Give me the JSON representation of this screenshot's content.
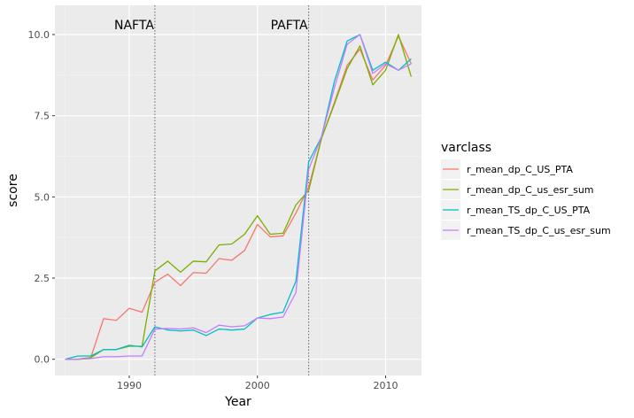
{
  "chart_data": {
    "type": "line",
    "xlabel": "Year",
    "ylabel": "score",
    "xlim": [
      1984.2,
      2012.8
    ],
    "ylim": [
      -0.5,
      10.9
    ],
    "x_ticks": [
      1990,
      2000,
      2010
    ],
    "y_ticks": [
      0.0,
      2.5,
      5.0,
      7.5,
      10.0
    ],
    "x_tick_labels": [
      "1990",
      "2000",
      "2010"
    ],
    "y_tick_labels": [
      "0.0",
      "2.5",
      "5.0",
      "7.5",
      "10.0"
    ],
    "grid": true,
    "legend": {
      "title": "varclass",
      "position": "right"
    },
    "annotations": [
      {
        "label": "NAFTA",
        "x": 1992
      },
      {
        "label": "PAFTA",
        "x": 2004
      }
    ],
    "x": [
      1985,
      1986,
      1987,
      1988,
      1989,
      1990,
      1991,
      1992,
      1993,
      1994,
      1995,
      1996,
      1997,
      1998,
      1999,
      2000,
      2001,
      2002,
      2003,
      2004,
      2005,
      2006,
      2007,
      2008,
      2009,
      2010,
      2011,
      2012
    ],
    "series": [
      {
        "name": "r_mean_dp_C_US_PTA",
        "color": "#F8766D",
        "values": [
          0.0,
          0.0,
          0.05,
          1.25,
          1.2,
          1.57,
          1.45,
          2.37,
          2.62,
          2.27,
          2.67,
          2.65,
          3.1,
          3.05,
          3.35,
          4.15,
          3.77,
          3.8,
          4.5,
          5.3,
          6.8,
          7.9,
          9.05,
          9.55,
          8.6,
          9.05,
          9.95,
          9.1
        ]
      },
      {
        "name": "r_mean_dp_C_us_esr_sum",
        "color": "#7CAE00",
        "values": [
          0.0,
          0.0,
          0.05,
          0.3,
          0.3,
          0.4,
          0.4,
          2.72,
          3.02,
          2.68,
          3.02,
          3.0,
          3.52,
          3.55,
          3.85,
          4.42,
          3.85,
          3.88,
          4.75,
          5.2,
          6.8,
          7.85,
          8.95,
          9.65,
          8.45,
          8.9,
          10.0,
          8.7
        ]
      },
      {
        "name": "r_mean_TS_dp_C_US_PTA",
        "color": "#00BFC4",
        "values": [
          0.0,
          0.1,
          0.1,
          0.3,
          0.3,
          0.43,
          0.38,
          1.0,
          0.9,
          0.87,
          0.9,
          0.73,
          0.93,
          0.9,
          0.93,
          1.27,
          1.38,
          1.45,
          2.4,
          6.08,
          6.85,
          8.55,
          9.8,
          10.0,
          8.9,
          9.15,
          8.9,
          9.25
        ]
      },
      {
        "name": "r_mean_TS_dp_C_us_esr_sum",
        "color": "#C77CFF",
        "values": [
          0.0,
          0.0,
          0.02,
          0.08,
          0.08,
          0.1,
          0.1,
          0.93,
          0.95,
          0.93,
          0.97,
          0.82,
          1.05,
          1.0,
          1.03,
          1.27,
          1.25,
          1.3,
          2.05,
          5.85,
          6.85,
          8.35,
          9.7,
          10.0,
          8.8,
          9.1,
          8.9,
          9.1
        ]
      }
    ]
  }
}
